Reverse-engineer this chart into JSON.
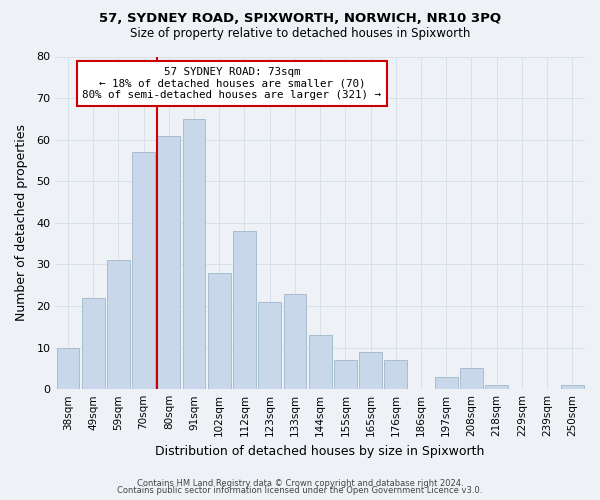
{
  "title1": "57, SYDNEY ROAD, SPIXWORTH, NORWICH, NR10 3PQ",
  "title2": "Size of property relative to detached houses in Spixworth",
  "xlabel": "Distribution of detached houses by size in Spixworth",
  "ylabel": "Number of detached properties",
  "footer1": "Contains HM Land Registry data © Crown copyright and database right 2024.",
  "footer2": "Contains public sector information licensed under the Open Government Licence v3.0.",
  "bar_labels": [
    "38sqm",
    "49sqm",
    "59sqm",
    "70sqm",
    "80sqm",
    "91sqm",
    "102sqm",
    "112sqm",
    "123sqm",
    "133sqm",
    "144sqm",
    "155sqm",
    "165sqm",
    "176sqm",
    "186sqm",
    "197sqm",
    "208sqm",
    "218sqm",
    "229sqm",
    "239sqm",
    "250sqm"
  ],
  "bar_values": [
    10,
    22,
    31,
    57,
    61,
    65,
    28,
    38,
    21,
    23,
    13,
    7,
    9,
    7,
    0,
    3,
    5,
    1,
    0,
    0,
    1
  ],
  "bar_color": "#c8d8ea",
  "bar_edge_color": "#a8bece",
  "marker_label": "57 SYDNEY ROAD: 73sqm",
  "marker_line_color": "#cc0000",
  "annotation_line1": "← 18% of detached houses are smaller (70)",
  "annotation_line2": "80% of semi-detached houses are larger (321) →",
  "annotation_box_color": "#ffffff",
  "annotation_box_edge": "#cc0000",
  "ylim": [
    0,
    80
  ],
  "yticks": [
    0,
    10,
    20,
    30,
    40,
    50,
    60,
    70,
    80
  ],
  "grid_color": "#d8e0e8",
  "bg_color": "#eef2f6"
}
